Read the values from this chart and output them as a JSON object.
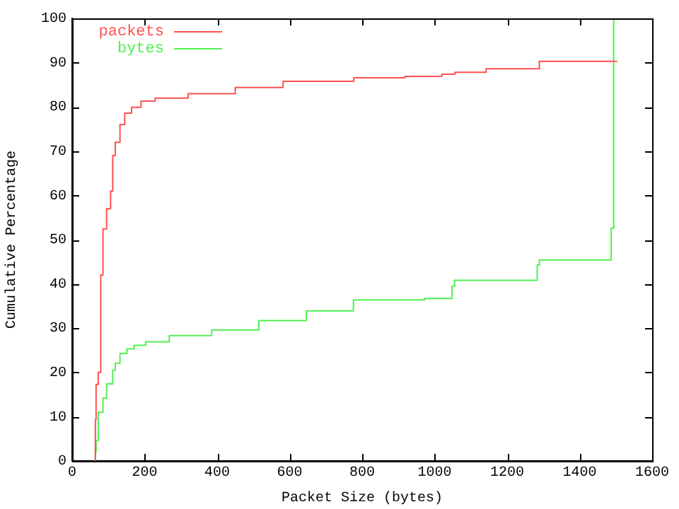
{
  "chart_data": {
    "type": "step",
    "xlabel": "Packet Size (bytes)",
    "ylabel": "Cumulative Percentage",
    "xlim": [
      0,
      1600
    ],
    "xticks": [
      0,
      200,
      400,
      600,
      800,
      1000,
      1200,
      1400,
      1600
    ],
    "ylim": [
      0,
      100
    ],
    "yticks": [
      0,
      10,
      20,
      30,
      40,
      50,
      60,
      70,
      80,
      90,
      100
    ],
    "grid": false,
    "legend": "top left",
    "marker": "none",
    "line_style": "solid",
    "series": [
      {
        "name": "packets",
        "color": "#ff5050",
        "x": [
          64,
          66,
          72,
          79,
          85,
          95,
          106,
          112,
          119,
          132,
          145,
          164,
          190,
          229,
          320,
          450,
          582,
          777,
          918,
          1020,
          1056,
          1142,
          1289,
          1487,
          1504
        ],
        "values": [
          0,
          9.3,
          17.3,
          20,
          42,
          52.4,
          57,
          61,
          69,
          72,
          76,
          78.6,
          79.9,
          81.3,
          82,
          83,
          84.4,
          85.8,
          86.6,
          86.9,
          87.4,
          87.8,
          88.6,
          90.3,
          90.3
        ]
      },
      {
        "name": "bytes",
        "color": "#50f050",
        "x": [
          64,
          66,
          72,
          85,
          95,
          112,
          119,
          132,
          151,
          171,
          203,
          268,
          385,
          515,
          646,
          776,
          972,
          1048,
          1055,
          1283,
          1289,
          1487,
          1494,
          1504
        ],
        "values": [
          0,
          2,
          4.6,
          11,
          14.2,
          17.4,
          20.5,
          22.1,
          24.3,
          25.3,
          26.1,
          26.9,
          28.3,
          29.6,
          31.7,
          33.9,
          36.4,
          36.7,
          39.5,
          40.8,
          44.3,
          45.4,
          52.6,
          100
        ]
      }
    ]
  }
}
